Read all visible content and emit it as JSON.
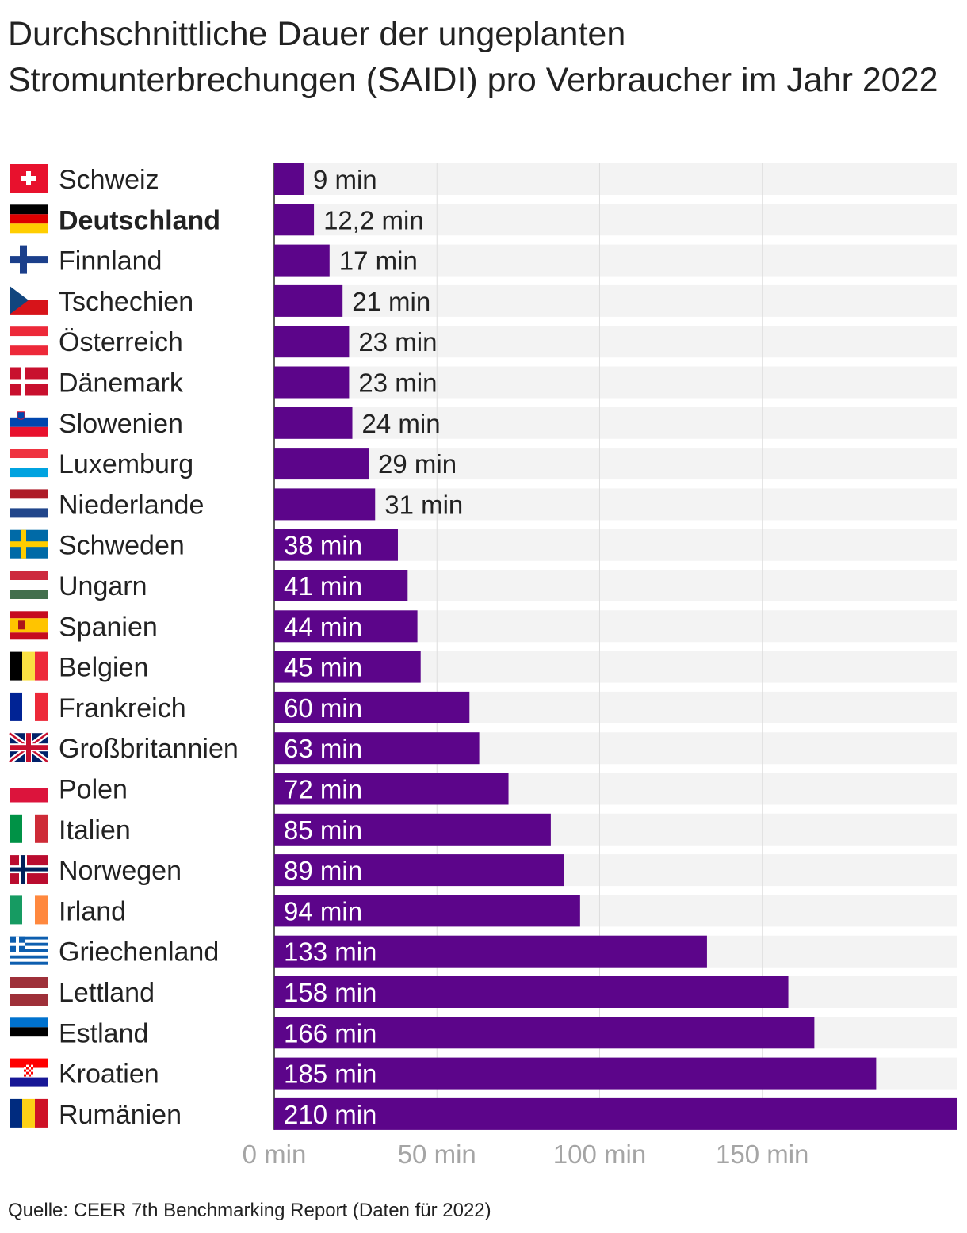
{
  "title": "Durchschnittliche Dauer der ungeplanten Stromunterbrechungen (SAIDI) pro Verbraucher im Jahr 2022",
  "source": "Quelle: CEER 7th Benchmarking Report (Daten für 2022)",
  "colors": {
    "bar": "#5c058a",
    "row_background": "#f3f3f3",
    "grid": "#dedede",
    "label_outside": "#222222",
    "label_inside": "#ffffff",
    "tick": "#a5a5a5"
  },
  "chart_data": {
    "type": "bar",
    "orientation": "horizontal",
    "title": "Durchschnittliche Dauer der ungeplanten Stromunterbrechungen (SAIDI) pro Verbraucher im Jahr 2022",
    "unit": "min",
    "xlim": [
      0,
      210
    ],
    "xticks": [
      0,
      50,
      100,
      150
    ],
    "xtick_labels": [
      "0 min",
      "50 min",
      "100 min",
      "150 min"
    ],
    "grid": true,
    "highlight": "Deutschland",
    "categories": [
      "Schweiz",
      "Deutschland",
      "Finnland",
      "Tschechien",
      "Österreich",
      "Dänemark",
      "Slowenien",
      "Luxemburg",
      "Niederlande",
      "Schweden",
      "Ungarn",
      "Spanien",
      "Belgien",
      "Frankreich",
      "Großbritannien",
      "Polen",
      "Italien",
      "Norwegen",
      "Irland",
      "Griechenland",
      "Lettland",
      "Estland",
      "Kroatien",
      "Rumänien"
    ],
    "flags": [
      "ch",
      "de",
      "fi",
      "cz",
      "at",
      "dk",
      "si",
      "lu",
      "nl",
      "se",
      "hu",
      "es",
      "be",
      "fr",
      "gb",
      "pl",
      "it",
      "no",
      "ie",
      "gr",
      "lv",
      "ee",
      "hr",
      "ro"
    ],
    "values": [
      9,
      12.2,
      17,
      21,
      23,
      23,
      24,
      29,
      31,
      38,
      41,
      44,
      45,
      60,
      63,
      72,
      85,
      89,
      94,
      133,
      158,
      166,
      185,
      210
    ],
    "value_labels": [
      "9 min",
      "12,2 min",
      "17 min",
      "21 min",
      "23 min",
      "23 min",
      "24 min",
      "29 min",
      "31 min",
      "38 min",
      "41 min",
      "44 min",
      "45 min",
      "60 min",
      "63 min",
      "72 min",
      "85 min",
      "89 min",
      "94 min",
      "133 min",
      "158 min",
      "166 min",
      "185 min",
      "210 min"
    ]
  }
}
